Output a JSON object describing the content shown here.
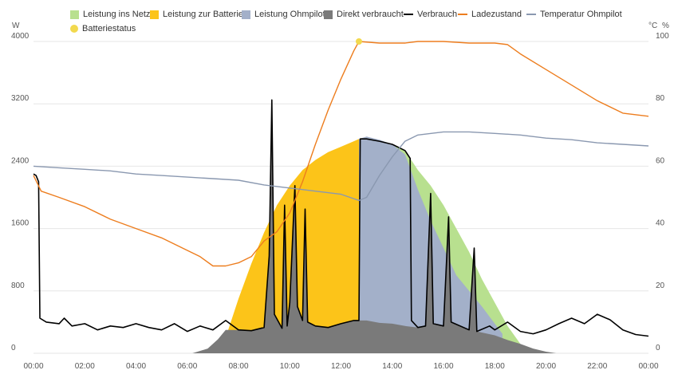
{
  "chart_data": {
    "type": "area",
    "y_left_unit": "W",
    "y_right_units": [
      "°C",
      "%"
    ],
    "y_left_ticks": [
      "0",
      "800",
      "1600",
      "2400",
      "3200",
      "4000"
    ],
    "y_right_ticks": [
      "0",
      "20",
      "40",
      "60",
      "80",
      "100"
    ],
    "ylim_left": [
      0,
      4000
    ],
    "ylim_right": [
      0,
      100
    ],
    "xlim_hours": [
      0,
      24
    ],
    "x_ticks": [
      "00:00",
      "02:00",
      "04:00",
      "06:00",
      "08:00",
      "10:00",
      "12:00",
      "14:00",
      "16:00",
      "18:00",
      "20:00",
      "22:00",
      "00:00"
    ],
    "grid": true,
    "legend_position": "top",
    "series": [
      {
        "key": "netz",
        "name": "Leistung ins Netz",
        "kind": "area",
        "color": "#b8e08f",
        "points": [
          [
            13.0,
            2750
          ],
          [
            13.5,
            2720
          ],
          [
            14.0,
            2680
          ],
          [
            14.5,
            2600
          ],
          [
            15.0,
            2350
          ],
          [
            15.5,
            2150
          ],
          [
            16.0,
            1900
          ],
          [
            16.5,
            1600
          ],
          [
            17.0,
            1300
          ],
          [
            17.5,
            950
          ],
          [
            18.0,
            650
          ],
          [
            18.5,
            350
          ],
          [
            19.0,
            120
          ],
          [
            19.3,
            0
          ]
        ]
      },
      {
        "key": "batterie",
        "name": "Leistung zur Batterie",
        "kind": "area",
        "color": "#fcc419",
        "points": [
          [
            7.3,
            0
          ],
          [
            7.6,
            300
          ],
          [
            8.0,
            700
          ],
          [
            8.5,
            1150
          ],
          [
            9.0,
            1550
          ],
          [
            9.5,
            1900
          ],
          [
            10.0,
            2150
          ],
          [
            10.5,
            2350
          ],
          [
            11.0,
            2480
          ],
          [
            11.5,
            2580
          ],
          [
            12.0,
            2650
          ],
          [
            12.5,
            2720
          ],
          [
            12.7,
            2750
          ]
        ]
      },
      {
        "key": "ohmpilot",
        "name": "Leistung Ohmpilot",
        "kind": "area",
        "color": "#a3b0c9",
        "points": [
          [
            12.7,
            2750
          ],
          [
            13.0,
            2780
          ],
          [
            13.5,
            2740
          ],
          [
            14.0,
            2680
          ],
          [
            14.5,
            2550
          ],
          [
            15.0,
            2100
          ],
          [
            15.5,
            1700
          ],
          [
            16.0,
            1350
          ],
          [
            16.5,
            1000
          ],
          [
            17.0,
            800
          ],
          [
            17.5,
            600
          ],
          [
            18.0,
            380
          ],
          [
            18.3,
            250
          ]
        ]
      },
      {
        "key": "direkt",
        "name": "Direkt verbraucht",
        "kind": "area",
        "color": "#7a7a7a",
        "points": [
          [
            6.2,
            0
          ],
          [
            6.8,
            60
          ],
          [
            7.2,
            180
          ],
          [
            7.5,
            300
          ],
          [
            8.0,
            300
          ],
          [
            8.5,
            290
          ],
          [
            9.0,
            330
          ],
          [
            9.2,
            1250
          ],
          [
            9.3,
            3250
          ],
          [
            9.4,
            500
          ],
          [
            9.7,
            320
          ],
          [
            9.8,
            1900
          ],
          [
            9.9,
            350
          ],
          [
            10.0,
            650
          ],
          [
            10.2,
            2150
          ],
          [
            10.3,
            600
          ],
          [
            10.5,
            420
          ],
          [
            10.6,
            1850
          ],
          [
            10.7,
            400
          ],
          [
            11.0,
            350
          ],
          [
            11.5,
            330
          ],
          [
            12.0,
            380
          ],
          [
            12.5,
            420
          ],
          [
            13.0,
            420
          ],
          [
            13.5,
            390
          ],
          [
            14.0,
            380
          ],
          [
            14.5,
            350
          ],
          [
            15.0,
            330
          ],
          [
            15.3,
            350
          ],
          [
            15.5,
            2050
          ],
          [
            15.6,
            380
          ],
          [
            16.0,
            350
          ],
          [
            16.2,
            1750
          ],
          [
            16.3,
            400
          ],
          [
            17.0,
            300
          ],
          [
            17.2,
            1350
          ],
          [
            17.3,
            280
          ],
          [
            18.0,
            230
          ],
          [
            18.5,
            170
          ],
          [
            19.0,
            120
          ],
          [
            19.5,
            60
          ],
          [
            20.0,
            20
          ],
          [
            20.4,
            0
          ]
        ]
      },
      {
        "key": "verbrauch",
        "name": "Verbrauch",
        "kind": "line",
        "color": "#000000",
        "points": [
          [
            0.0,
            2300
          ],
          [
            0.1,
            2280
          ],
          [
            0.2,
            2200
          ],
          [
            0.25,
            450
          ],
          [
            0.5,
            400
          ],
          [
            1.0,
            380
          ],
          [
            1.2,
            450
          ],
          [
            1.5,
            350
          ],
          [
            2.0,
            380
          ],
          [
            2.5,
            300
          ],
          [
            3.0,
            350
          ],
          [
            3.5,
            330
          ],
          [
            4.0,
            380
          ],
          [
            4.5,
            330
          ],
          [
            5.0,
            300
          ],
          [
            5.5,
            380
          ],
          [
            6.0,
            280
          ],
          [
            6.5,
            350
          ],
          [
            7.0,
            300
          ],
          [
            7.5,
            420
          ],
          [
            8.0,
            300
          ],
          [
            8.5,
            290
          ],
          [
            9.0,
            330
          ],
          [
            9.2,
            1250
          ],
          [
            9.3,
            3250
          ],
          [
            9.4,
            500
          ],
          [
            9.7,
            320
          ],
          [
            9.8,
            1900
          ],
          [
            9.9,
            350
          ],
          [
            10.0,
            650
          ],
          [
            10.2,
            2150
          ],
          [
            10.3,
            600
          ],
          [
            10.5,
            420
          ],
          [
            10.6,
            1850
          ],
          [
            10.7,
            400
          ],
          [
            11.0,
            350
          ],
          [
            11.5,
            330
          ],
          [
            12.0,
            380
          ],
          [
            12.5,
            420
          ],
          [
            12.7,
            420
          ],
          [
            12.75,
            2750
          ],
          [
            13.0,
            2750
          ],
          [
            13.5,
            2720
          ],
          [
            14.0,
            2680
          ],
          [
            14.5,
            2600
          ],
          [
            14.7,
            2500
          ],
          [
            14.75,
            420
          ],
          [
            15.0,
            330
          ],
          [
            15.3,
            350
          ],
          [
            15.5,
            2050
          ],
          [
            15.6,
            380
          ],
          [
            16.0,
            350
          ],
          [
            16.2,
            1750
          ],
          [
            16.3,
            400
          ],
          [
            17.0,
            300
          ],
          [
            17.2,
            1350
          ],
          [
            17.3,
            280
          ],
          [
            17.8,
            350
          ],
          [
            18.0,
            300
          ],
          [
            18.5,
            400
          ],
          [
            19.0,
            280
          ],
          [
            19.5,
            250
          ],
          [
            20.0,
            300
          ],
          [
            20.5,
            380
          ],
          [
            21.0,
            450
          ],
          [
            21.5,
            380
          ],
          [
            22.0,
            500
          ],
          [
            22.5,
            430
          ],
          [
            23.0,
            300
          ],
          [
            23.5,
            240
          ],
          [
            24.0,
            220
          ]
        ]
      },
      {
        "key": "ladezustand",
        "name": "Ladezustand",
        "kind": "line",
        "axis": "right",
        "color": "#ed7d1e",
        "points": [
          [
            0.0,
            57
          ],
          [
            0.3,
            52
          ],
          [
            1.0,
            50
          ],
          [
            2.0,
            47
          ],
          [
            3.0,
            43
          ],
          [
            4.0,
            40
          ],
          [
            5.0,
            37
          ],
          [
            6.0,
            33
          ],
          [
            6.5,
            31
          ],
          [
            7.0,
            28
          ],
          [
            7.5,
            28
          ],
          [
            8.0,
            29
          ],
          [
            8.5,
            31
          ],
          [
            9.0,
            36
          ],
          [
            9.5,
            39
          ],
          [
            10.0,
            45
          ],
          [
            10.5,
            55
          ],
          [
            11.0,
            67
          ],
          [
            11.5,
            78
          ],
          [
            12.0,
            88
          ],
          [
            12.5,
            97
          ],
          [
            12.7,
            100
          ],
          [
            13.5,
            99.5
          ],
          [
            14.0,
            99.5
          ],
          [
            14.5,
            99.5
          ],
          [
            15.0,
            100
          ],
          [
            16.0,
            100
          ],
          [
            17.0,
            99.5
          ],
          [
            18.0,
            99.5
          ],
          [
            18.5,
            99
          ],
          [
            19.0,
            96
          ],
          [
            20.0,
            91
          ],
          [
            21.0,
            86
          ],
          [
            22.0,
            81
          ],
          [
            23.0,
            77
          ],
          [
            24.0,
            76
          ]
        ]
      },
      {
        "key": "temperatur",
        "name": "Temperatur Ohmpilot",
        "kind": "line",
        "axis": "right",
        "color": "#8a98b0",
        "points": [
          [
            0.0,
            60
          ],
          [
            1.0,
            59.5
          ],
          [
            2.0,
            59
          ],
          [
            3.0,
            58.5
          ],
          [
            4.0,
            57.5
          ],
          [
            5.0,
            57
          ],
          [
            6.0,
            56.5
          ],
          [
            7.0,
            56
          ],
          [
            8.0,
            55.5
          ],
          [
            9.0,
            54
          ],
          [
            10.0,
            53
          ],
          [
            11.0,
            52
          ],
          [
            12.0,
            51
          ],
          [
            12.7,
            49
          ],
          [
            13.0,
            50
          ],
          [
            13.5,
            57
          ],
          [
            14.0,
            63
          ],
          [
            14.5,
            68
          ],
          [
            15.0,
            70
          ],
          [
            16.0,
            71
          ],
          [
            17.0,
            71
          ],
          [
            18.0,
            70.5
          ],
          [
            19.0,
            70
          ],
          [
            20.0,
            69
          ],
          [
            21.0,
            68.5
          ],
          [
            22.0,
            67.5
          ],
          [
            23.0,
            67
          ],
          [
            24.0,
            66.5
          ]
        ]
      }
    ],
    "markers": [
      {
        "name": "Batteriestatus",
        "color": "#f2d94e",
        "x": 12.7,
        "y_right": 100
      }
    ]
  }
}
